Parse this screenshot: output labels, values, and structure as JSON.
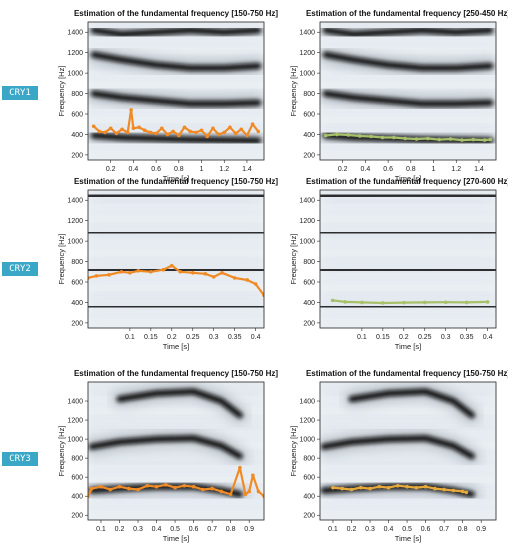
{
  "colors": {
    "orange": "#f08a24",
    "green": "#a7c06a",
    "gold": "#e6a93a",
    "tag_bg": "#3aa7c7",
    "tag_text": "#ffffff",
    "spectro_light": "#eef2f6",
    "spectro_dark": "#0d0d0d"
  },
  "row_labels": [
    "CRY1",
    "CRY2",
    "CRY3"
  ],
  "axis_labels": {
    "ylabel": "Frequency [Hz]",
    "xlabel": "Time [s]"
  },
  "chart_data": [
    {
      "type": "line",
      "row": 0,
      "col": 0,
      "title": "Estimation of the fundamental frequency [150-750 Hz]",
      "xlabel": "Time [s]",
      "ylabel": "Frequency [Hz]",
      "xlim": [
        0,
        1.55
      ],
      "ylim": [
        150,
        1500
      ],
      "xticks": [
        0.2,
        0.4,
        0.6,
        0.8,
        1,
        1.2,
        1.4
      ],
      "yticks": [
        200,
        400,
        600,
        800,
        1000,
        1200,
        1400
      ],
      "harmonics": [
        {
          "x": [
            0.05,
            0.3,
            0.6,
            0.9,
            1.2,
            1.5
          ],
          "y": [
            390,
            370,
            360,
            350,
            345,
            340
          ]
        },
        {
          "x": [
            0.05,
            0.3,
            0.6,
            0.9,
            1.2,
            1.5
          ],
          "y": [
            800,
            760,
            730,
            700,
            700,
            710
          ]
        },
        {
          "x": [
            0.05,
            0.3,
            0.6,
            0.9,
            1.2,
            1.5
          ],
          "y": [
            1180,
            1130,
            1080,
            1050,
            1050,
            1070
          ]
        },
        {
          "x": [
            0.05,
            0.3,
            0.6,
            0.9,
            1.2,
            1.5
          ],
          "y": [
            1420,
            1380,
            1400,
            1420,
            1400,
            1420
          ]
        }
      ],
      "series": [
        {
          "color": "orange",
          "x": [
            0.05,
            0.1,
            0.15,
            0.2,
            0.25,
            0.3,
            0.35,
            0.38,
            0.4,
            0.45,
            0.5,
            0.55,
            0.6,
            0.65,
            0.7,
            0.75,
            0.8,
            0.85,
            0.9,
            0.95,
            1.0,
            1.05,
            1.1,
            1.15,
            1.2,
            1.25,
            1.3,
            1.35,
            1.4,
            1.45,
            1.5
          ],
          "y": [
            480,
            430,
            420,
            460,
            410,
            450,
            420,
            640,
            460,
            470,
            440,
            420,
            410,
            460,
            400,
            430,
            390,
            470,
            430,
            420,
            440,
            380,
            460,
            400,
            420,
            470,
            410,
            450,
            390,
            500,
            430
          ]
        }
      ]
    },
    {
      "type": "line",
      "row": 0,
      "col": 1,
      "title": "Estimation of the fundamental frequency [250-450 Hz]",
      "xlabel": "Time [s]",
      "ylabel": "Frequency [Hz]",
      "xlim": [
        0,
        1.55
      ],
      "ylim": [
        150,
        1500
      ],
      "xticks": [
        0.2,
        0.4,
        0.6,
        0.8,
        1,
        1.2,
        1.4
      ],
      "yticks": [
        200,
        400,
        600,
        800,
        1000,
        1200,
        1400
      ],
      "harmonics": [
        {
          "x": [
            0.05,
            0.3,
            0.6,
            0.9,
            1.2,
            1.5
          ],
          "y": [
            390,
            370,
            360,
            350,
            345,
            340
          ]
        },
        {
          "x": [
            0.05,
            0.3,
            0.6,
            0.9,
            1.2,
            1.5
          ],
          "y": [
            800,
            760,
            730,
            700,
            700,
            710
          ]
        },
        {
          "x": [
            0.05,
            0.3,
            0.6,
            0.9,
            1.2,
            1.5
          ],
          "y": [
            1180,
            1130,
            1080,
            1050,
            1050,
            1070
          ]
        },
        {
          "x": [
            0.05,
            0.3,
            0.6,
            0.9,
            1.2,
            1.5
          ],
          "y": [
            1420,
            1380,
            1400,
            1420,
            1400,
            1420
          ]
        }
      ],
      "series": [
        {
          "color": "green",
          "x": [
            0.05,
            0.15,
            0.25,
            0.35,
            0.45,
            0.55,
            0.65,
            0.75,
            0.85,
            0.95,
            1.05,
            1.15,
            1.25,
            1.35,
            1.45,
            1.5
          ],
          "y": [
            390,
            400,
            395,
            385,
            380,
            370,
            370,
            360,
            355,
            360,
            350,
            355,
            345,
            350,
            345,
            350
          ]
        }
      ]
    },
    {
      "type": "line",
      "row": 1,
      "col": 0,
      "title": "Estimation of the fundamental frequency [150-750 Hz]",
      "xlabel": "Time [s]",
      "ylabel": "Frequency [Hz]",
      "xlim": [
        0,
        0.42
      ],
      "ylim": [
        150,
        1500
      ],
      "xticks": [
        0.1,
        0.15,
        0.2,
        0.25,
        0.3,
        0.35,
        0.4
      ],
      "yticks": [
        200,
        400,
        600,
        800,
        1000,
        1200,
        1400
      ],
      "harmonics": [
        {
          "x": [
            0,
            0.1,
            0.2,
            0.3,
            0.42
          ],
          "y": [
            355,
            358,
            360,
            358,
            355
          ]
        },
        {
          "x": [
            0,
            0.1,
            0.2,
            0.3,
            0.42
          ],
          "y": [
            715,
            718,
            720,
            718,
            714
          ]
        },
        {
          "x": [
            0,
            0.1,
            0.2,
            0.3,
            0.42
          ],
          "y": [
            1080,
            1082,
            1085,
            1082,
            1078
          ]
        },
        {
          "x": [
            0,
            0.1,
            0.2,
            0.3,
            0.42
          ],
          "y": [
            1440,
            1445,
            1450,
            1445,
            1440
          ]
        }
      ],
      "series": [
        {
          "color": "orange",
          "x": [
            0.0,
            0.02,
            0.05,
            0.08,
            0.1,
            0.12,
            0.15,
            0.18,
            0.2,
            0.22,
            0.25,
            0.28,
            0.3,
            0.32,
            0.35,
            0.38,
            0.4,
            0.42
          ],
          "y": [
            640,
            660,
            670,
            700,
            690,
            710,
            700,
            720,
            760,
            700,
            690,
            680,
            650,
            690,
            640,
            620,
            580,
            470
          ]
        }
      ]
    },
    {
      "type": "line",
      "row": 1,
      "col": 1,
      "title": "Estimation of the fundamental frequency [270-600 Hz]",
      "xlabel": "Time [s]",
      "ylabel": "Frequency [Hz]",
      "xlim": [
        0,
        0.42
      ],
      "ylim": [
        150,
        1500
      ],
      "xticks": [
        0.1,
        0.15,
        0.2,
        0.25,
        0.3,
        0.35,
        0.4
      ],
      "yticks": [
        200,
        400,
        600,
        800,
        1000,
        1200,
        1400
      ],
      "harmonics": [
        {
          "x": [
            0,
            0.1,
            0.2,
            0.3,
            0.42
          ],
          "y": [
            355,
            358,
            360,
            358,
            355
          ]
        },
        {
          "x": [
            0,
            0.1,
            0.2,
            0.3,
            0.42
          ],
          "y": [
            715,
            718,
            720,
            718,
            714
          ]
        },
        {
          "x": [
            0,
            0.1,
            0.2,
            0.3,
            0.42
          ],
          "y": [
            1080,
            1082,
            1085,
            1082,
            1078
          ]
        },
        {
          "x": [
            0,
            0.1,
            0.2,
            0.3,
            0.42
          ],
          "y": [
            1440,
            1445,
            1450,
            1445,
            1440
          ]
        }
      ],
      "series": [
        {
          "color": "green",
          "x": [
            0.03,
            0.06,
            0.1,
            0.15,
            0.2,
            0.25,
            0.3,
            0.35,
            0.4
          ],
          "y": [
            420,
            405,
            400,
            395,
            398,
            400,
            402,
            400,
            405
          ]
        }
      ]
    },
    {
      "type": "line",
      "row": 2,
      "col": 0,
      "title": "Estimation of the fundamental frequency [150-750 Hz]",
      "xlabel": "Time [s]",
      "ylabel": "Frequency [Hz]",
      "xlim": [
        0.03,
        0.98
      ],
      "ylim": [
        150,
        1600
      ],
      "xticks": [
        0.1,
        0.2,
        0.3,
        0.4,
        0.5,
        0.6,
        0.7,
        0.8,
        0.9
      ],
      "yticks": [
        200,
        400,
        600,
        800,
        1000,
        1200,
        1400
      ],
      "harmonics": [
        {
          "x": [
            0.05,
            0.2,
            0.4,
            0.6,
            0.75,
            0.85
          ],
          "y": [
            460,
            480,
            500,
            500,
            460,
            420
          ]
        },
        {
          "x": [
            0.05,
            0.2,
            0.4,
            0.6,
            0.75,
            0.85
          ],
          "y": [
            920,
            970,
            1000,
            1010,
            930,
            820
          ]
        },
        {
          "x": [
            0.2,
            0.4,
            0.6,
            0.75,
            0.85
          ],
          "y": [
            1420,
            1480,
            1500,
            1400,
            1250
          ]
        }
      ],
      "series": [
        {
          "color": "orange",
          "x": [
            0.03,
            0.05,
            0.1,
            0.15,
            0.2,
            0.25,
            0.3,
            0.35,
            0.4,
            0.45,
            0.5,
            0.55,
            0.6,
            0.65,
            0.7,
            0.75,
            0.8,
            0.85,
            0.88,
            0.9,
            0.92,
            0.95,
            0.98
          ],
          "y": [
            400,
            480,
            500,
            470,
            500,
            480,
            470,
            510,
            500,
            520,
            490,
            510,
            500,
            470,
            480,
            450,
            420,
            700,
            420,
            450,
            620,
            450,
            400
          ]
        }
      ]
    },
    {
      "type": "line",
      "row": 2,
      "col": 1,
      "title": "Estimation of the fundamental frequency [150-750 Hz]",
      "xlabel": "Time [s]",
      "ylabel": "Frequency [Hz]",
      "xlim": [
        0.03,
        0.98
      ],
      "ylim": [
        150,
        1600
      ],
      "xticks": [
        0.1,
        0.2,
        0.3,
        0.4,
        0.5,
        0.6,
        0.7,
        0.8,
        0.9
      ],
      "yticks": [
        200,
        400,
        600,
        800,
        1000,
        1200,
        1400
      ],
      "harmonics": [
        {
          "x": [
            0.05,
            0.2,
            0.4,
            0.6,
            0.75,
            0.85
          ],
          "y": [
            460,
            480,
            500,
            500,
            460,
            420
          ]
        },
        {
          "x": [
            0.05,
            0.2,
            0.4,
            0.6,
            0.75,
            0.85
          ],
          "y": [
            920,
            970,
            1000,
            1010,
            930,
            820
          ]
        },
        {
          "x": [
            0.2,
            0.4,
            0.6,
            0.75,
            0.85
          ],
          "y": [
            1420,
            1480,
            1500,
            1400,
            1250
          ]
        }
      ],
      "series": [
        {
          "color": "gold",
          "x": [
            0.1,
            0.15,
            0.2,
            0.25,
            0.3,
            0.35,
            0.4,
            0.45,
            0.5,
            0.55,
            0.6,
            0.65,
            0.7,
            0.75,
            0.8,
            0.82
          ],
          "y": [
            490,
            480,
            470,
            490,
            480,
            500,
            490,
            510,
            500,
            490,
            500,
            480,
            470,
            460,
            450,
            440
          ]
        }
      ]
    }
  ]
}
